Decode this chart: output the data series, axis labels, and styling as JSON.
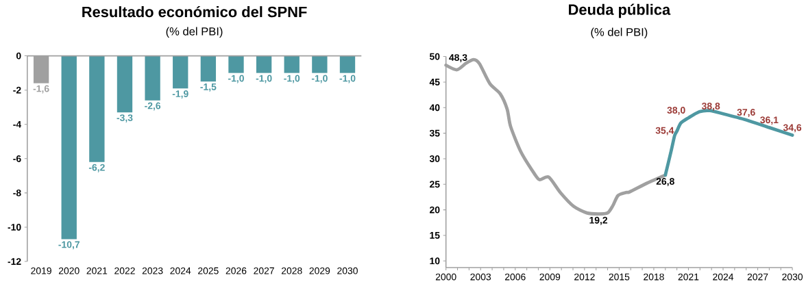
{
  "chart_data": [
    {
      "type": "bar",
      "title": "Resultado económico del SPNF",
      "subtitle": "(% del PBI)",
      "categories": [
        "2019",
        "2020",
        "2021",
        "2022",
        "2023",
        "2024",
        "2025",
        "2026",
        "2027",
        "2028",
        "2029",
        "2030"
      ],
      "values": [
        -1.6,
        -10.7,
        -6.2,
        -3.3,
        -2.6,
        -1.9,
        -1.5,
        -1.0,
        -1.0,
        -1.0,
        -1.0,
        -1.0
      ],
      "colors": [
        "#a0a0a0",
        "#4e98a2",
        "#4e98a2",
        "#4e98a2",
        "#4e98a2",
        "#4e98a2",
        "#4e98a2",
        "#4e98a2",
        "#4e98a2",
        "#4e98a2",
        "#4e98a2",
        "#4e98a2"
      ],
      "value_labels": [
        "-1,6",
        "-10,7",
        "-6,2",
        "-3,3",
        "-2,6",
        "-1,9",
        "-1,5",
        "-1,0",
        "-1,0",
        "-1,0",
        "-1,0",
        "-1,0"
      ],
      "ylim": [
        -12,
        0
      ],
      "yticks": [
        0,
        -2,
        -4,
        -6,
        -8,
        -10,
        -12
      ]
    },
    {
      "type": "line",
      "title": "Deuda pública",
      "subtitle": "(% del PBI)",
      "series": [
        {
          "color": "#a0a0a0",
          "x": [
            2000,
            2000.95,
            2001.75,
            2002.4,
            2002.9,
            2003.8,
            2004.7,
            2005.3,
            2005.6,
            2006.5,
            2007.65,
            2008.1,
            2008.9,
            2009.9,
            2011.05,
            2012.2,
            2013.2,
            2014.0,
            2014.45,
            2014.9,
            2015.6,
            2015.9,
            2017.4,
            2019
          ],
          "values": [
            48.3,
            47.4,
            48.7,
            49.4,
            48.6,
            44.7,
            42.7,
            39.7,
            36.3,
            31.3,
            27.1,
            25.9,
            26.4,
            23.4,
            20.7,
            19.4,
            19.2,
            19.4,
            20.8,
            22.8,
            23.4,
            23.5,
            25.2,
            26.8
          ]
        },
        {
          "color": "#4e98a2",
          "x": [
            2019,
            2019.5,
            2019.8,
            2020,
            2020.35,
            2021,
            2021.95,
            2022.85,
            2024,
            2026,
            2028,
            2030
          ],
          "values": [
            26.8,
            31.5,
            34.5,
            35.4,
            37.0,
            38.0,
            39.2,
            39.4,
            38.8,
            37.6,
            36.1,
            34.6
          ]
        }
      ],
      "annotations": [
        {
          "text": "48,3",
          "x": 2000,
          "y": 48.3
        },
        {
          "text": "19,2",
          "x": 2013.2,
          "y": 19.2
        },
        {
          "text": "26,8",
          "x": 2019,
          "y": 26.8
        },
        {
          "text": "35,4",
          "x": 2020,
          "y": 35.4
        },
        {
          "text": "38,0",
          "x": 2021,
          "y": 38.0
        },
        {
          "text": "38,8",
          "x": 2024,
          "y": 38.8
        },
        {
          "text": "37,6",
          "x": 2026,
          "y": 37.6
        },
        {
          "text": "36,1",
          "x": 2028,
          "y": 36.1
        },
        {
          "text": "34,6",
          "x": 2030,
          "y": 34.6
        }
      ],
      "xlim": [
        2000,
        2030
      ],
      "xticks": [
        2000,
        {
          "value": 2001,
          "label": null
        },
        {
          "value": 2002,
          "label": null
        },
        2003,
        {
          "value": 2004,
          "label": null
        },
        {
          "value": 2005,
          "label": null
        },
        2006,
        {
          "value": 2007,
          "label": null
        },
        {
          "value": 2008,
          "label": null
        },
        2009,
        {
          "value": 2010,
          "label": null
        },
        {
          "value": 2011,
          "label": null
        },
        2012,
        {
          "value": 2013,
          "label": null
        },
        {
          "value": 2014,
          "label": null
        },
        2015,
        {
          "value": 2016,
          "label": null
        },
        {
          "value": 2017,
          "label": null
        },
        2018,
        {
          "value": 2019,
          "label": null
        },
        {
          "value": 2020,
          "label": null
        },
        2021,
        {
          "value": 2022,
          "label": null
        },
        {
          "value": 2023,
          "label": null
        },
        2024,
        {
          "value": 2025,
          "label": null
        },
        {
          "value": 2026,
          "label": null
        },
        2027,
        {
          "value": 2028,
          "label": null
        },
        {
          "value": 2029,
          "label": null
        },
        2030
      ],
      "ylim": [
        8.7,
        50
      ],
      "yticks": [
        10,
        15,
        20,
        25,
        30,
        35,
        40,
        45,
        50
      ]
    }
  ]
}
